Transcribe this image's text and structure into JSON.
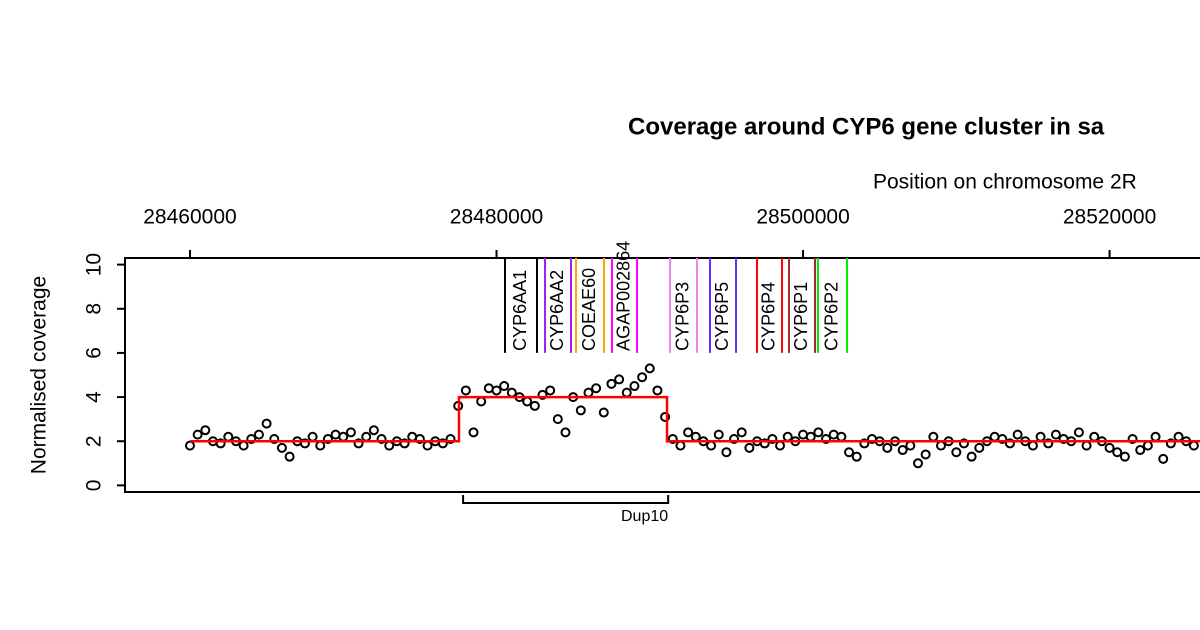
{
  "chart_data": {
    "type": "scatter",
    "title": "Coverage around CYP6 gene cluster in sa",
    "x_label": "Position on chromosome 2R",
    "y_label": "Normalised coverage",
    "xlim": [
      28455760,
      28525900
    ],
    "ylim": [
      -0.3,
      10.3
    ],
    "xticks": [
      28460000,
      28480000,
      28500000,
      28520000
    ],
    "yticks": [
      0,
      2,
      4,
      6,
      8,
      10
    ],
    "point_color": "#000000",
    "x": [
      28460000,
      28460500,
      28461000,
      28461500,
      28462000,
      28462500,
      28463000,
      28463500,
      28464000,
      28464500,
      28465000,
      28465500,
      28466000,
      28466500,
      28467000,
      28467500,
      28468000,
      28468500,
      28469000,
      28469500,
      28470000,
      28470500,
      28471000,
      28471500,
      28472000,
      28472500,
      28473000,
      28473500,
      28474000,
      28474500,
      28475000,
      28475500,
      28476000,
      28476500,
      28477000,
      28477500,
      28478000,
      28478500,
      28479000,
      28479500,
      28480000,
      28480500,
      28481000,
      28481500,
      28482000,
      28482500,
      28483000,
      28483500,
      28484000,
      28484500,
      28485000,
      28485500,
      28486000,
      28486500,
      28487000,
      28487500,
      28488000,
      28488500,
      28489000,
      28489500,
      28490000,
      28490500,
      28491000,
      28491500,
      28492000,
      28492500,
      28493000,
      28493500,
      28494000,
      28494500,
      28495000,
      28495500,
      28496000,
      28496500,
      28497000,
      28497500,
      28498000,
      28498500,
      28499000,
      28499500,
      28500000,
      28500500,
      28501000,
      28501500,
      28502000,
      28502500,
      28503000,
      28503500,
      28504000,
      28504500,
      28505000,
      28505500,
      28506000,
      28506500,
      28507000,
      28507500,
      28508000,
      28508500,
      28509000,
      28509500,
      28510000,
      28510500,
      28511000,
      28511500,
      28512000,
      28512500,
      28513000,
      28513500,
      28514000,
      28514500,
      28515000,
      28515500,
      28516000,
      28516500,
      28517000,
      28517500,
      28518000,
      28518500,
      28519000,
      28519500,
      28520000,
      28520500,
      28521000,
      28521500,
      28522000,
      28522500,
      28523000,
      28523500,
      28524000,
      28524500,
      28525000,
      28525500
    ],
    "values": [
      1.8,
      2.3,
      2.5,
      2.0,
      1.9,
      2.2,
      2.0,
      1.8,
      2.1,
      2.3,
      2.8,
      2.1,
      1.7,
      1.3,
      2.0,
      1.9,
      2.2,
      1.8,
      2.1,
      2.3,
      2.2,
      2.4,
      1.9,
      2.2,
      2.5,
      2.1,
      1.8,
      2.0,
      1.9,
      2.2,
      2.1,
      1.8,
      2.0,
      1.9,
      2.1,
      3.6,
      4.3,
      2.4,
      3.8,
      4.4,
      4.3,
      4.5,
      4.2,
      4.0,
      3.8,
      3.6,
      4.1,
      4.3,
      3.0,
      2.4,
      4.0,
      3.4,
      4.2,
      4.4,
      3.3,
      4.6,
      4.8,
      4.2,
      4.5,
      4.9,
      5.3,
      4.3,
      3.1,
      2.1,
      1.8,
      2.4,
      2.2,
      2.0,
      1.8,
      2.3,
      1.5,
      2.1,
      2.4,
      1.7,
      2.0,
      1.9,
      2.1,
      1.8,
      2.2,
      2.0,
      2.3,
      2.2,
      2.4,
      2.1,
      2.3,
      2.2,
      1.5,
      1.3,
      1.9,
      2.1,
      2.0,
      1.7,
      2.0,
      1.6,
      1.8,
      1.0,
      1.4,
      2.2,
      1.8,
      2.0,
      1.5,
      1.9,
      1.3,
      1.7,
      2.0,
      2.2,
      2.1,
      1.9,
      2.3,
      2.0,
      1.8,
      2.2,
      1.9,
      2.3,
      2.1,
      2.0,
      2.4,
      1.8,
      2.2,
      2.0,
      1.7,
      1.5,
      1.3,
      2.1,
      1.6,
      1.8,
      2.2,
      1.2,
      1.9,
      2.2,
      2.0,
      1.8
    ],
    "segment_line": {
      "color": "#ff0000",
      "x": [
        28460000,
        28477550,
        28477550,
        28491125,
        28491125,
        28525900
      ],
      "values": [
        2,
        2,
        4,
        4,
        2,
        2
      ]
    },
    "genes": [
      {
        "name": "CYP6AA1",
        "color": "#000000",
        "start": 28480554,
        "end": 28482642
      },
      {
        "name": "CYP6AA2",
        "color": "#a020f0",
        "start": 28483164,
        "end": 28484860
      },
      {
        "name": "COEAE60",
        "color": "#ffa500",
        "start": 28485187,
        "end": 28487014
      },
      {
        "name": "AGAP002864",
        "color": "#ff00ff",
        "start": 28487536,
        "end": 28489167
      },
      {
        "name": "CYP6P3",
        "color": "#ee82ee",
        "start": 28491320,
        "end": 28493082
      },
      {
        "name": "CYP6P5",
        "color": "#6a2bff",
        "start": 28493930,
        "end": 28495627
      },
      {
        "name": "CYP6P4",
        "color": "#ff0000",
        "start": 28496997,
        "end": 28498628
      },
      {
        "name": "CYP6P1",
        "color": "#a52a2a",
        "start": 28499085,
        "end": 28500781
      },
      {
        "name": "CYP6P2",
        "color": "#00ee00",
        "start": 28500977,
        "end": 28502869
      }
    ],
    "gene_line_top": 6,
    "duplication": {
      "label": "Dup10",
      "start": 28477820,
      "end": 28491200
    }
  }
}
